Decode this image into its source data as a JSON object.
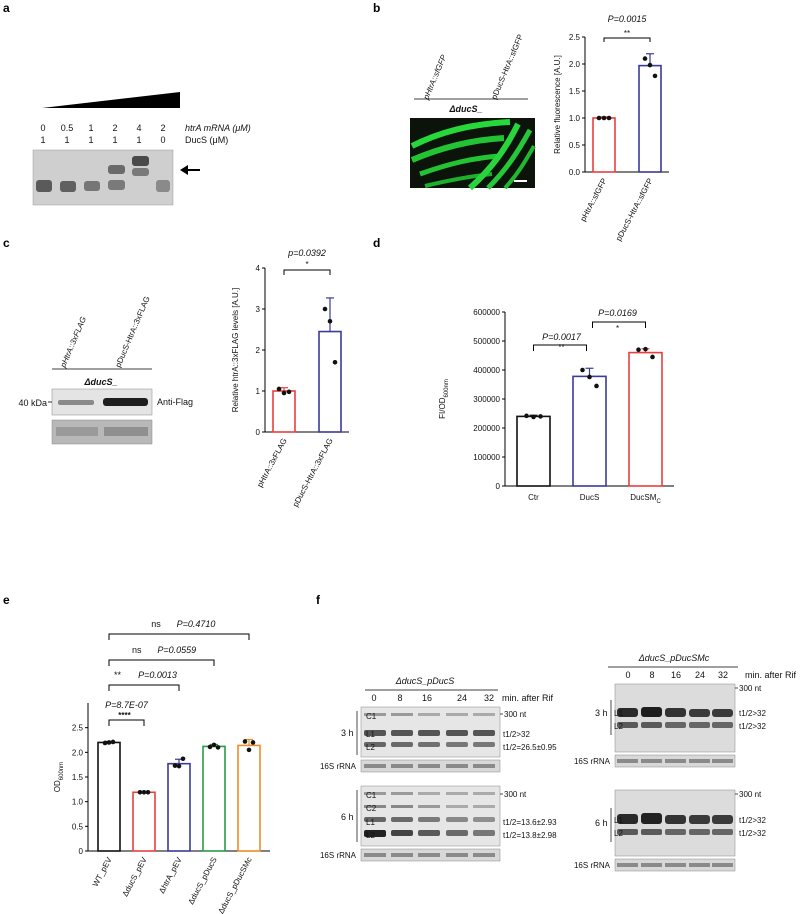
{
  "panels": {
    "a": {
      "letter": "a",
      "row1_label": "htrA mRNA (μM)",
      "row2_label": "DucS (μM)",
      "row1_values": [
        "0",
        "0.5",
        "1",
        "2",
        "4",
        "2"
      ],
      "row2_values": [
        "1",
        "1",
        "1",
        "1",
        "1",
        "0"
      ]
    },
    "b": {
      "letter": "b",
      "lane_labels": [
        "pHtrA::sfGFP",
        "pDucS-HtrA::sfGFP"
      ],
      "strain": "ΔducS_",
      "chart_data": {
        "type": "bar",
        "categories": [
          "pHtrA::sfGFP",
          "pDucS-HtrA::sfGFP"
        ],
        "values": [
          1.0,
          1.97
        ],
        "errors": [
          0.02,
          0.22
        ],
        "points": [
          [
            1.0,
            1.0,
            1.0
          ],
          [
            2.1,
            1.98,
            1.78
          ]
        ],
        "ylabel": "Relative fluorescence [A.U.]",
        "ylim": [
          0,
          2.5
        ],
        "yticks": [
          "0.0",
          "0.5",
          "1.0",
          "1.5",
          "2.0",
          "2.5"
        ],
        "colors": [
          "#e8403f",
          "#3a3a9a"
        ],
        "p_text": "P=0.0015",
        "sig": "**"
      }
    },
    "c": {
      "letter": "c",
      "lane_labels": [
        "pHtrA::3xFLAG",
        "pDucS-HtrA::3xFLAG"
      ],
      "strain": "ΔducS_",
      "marker": "40 kDa",
      "antibody": "Anti-Flag",
      "chart_data": {
        "type": "bar",
        "categories": [
          "pHtrA::3xFLAG",
          "pDucS-HtrA::3xFLAG"
        ],
        "values": [
          1.0,
          2.45
        ],
        "errors": [
          0.08,
          0.82
        ],
        "points": [
          [
            1.05,
            0.95,
            0.98
          ],
          [
            3.0,
            2.7,
            1.7
          ]
        ],
        "ylabel": "Relative htrA::3xFLAG levels [A.U.]",
        "ylim": [
          0,
          4
        ],
        "yticks": [
          "0",
          "1",
          "2",
          "3",
          "4"
        ],
        "colors": [
          "#e8403f",
          "#3a3a9a"
        ],
        "p_text": "p=0.0392",
        "sig": "*"
      }
    },
    "d": {
      "letter": "d",
      "chart_data": {
        "type": "bar",
        "categories": [
          "Ctr",
          "DucS",
          "DucSM"
        ],
        "category_subscripts": [
          "",
          "",
          "C"
        ],
        "values": [
          240000,
          378000,
          460000
        ],
        "errors": [
          4000,
          28000,
          13000
        ],
        "points": [
          [
            242000,
            238000,
            240000
          ],
          [
            400000,
            376000,
            345000
          ],
          [
            470000,
            472000,
            445000
          ]
        ],
        "ylabel": "FI/OD",
        "ylabel_sub": "600nm",
        "ylim": [
          0,
          600000
        ],
        "yticks": [
          "0",
          "100000",
          "200000",
          "300000",
          "400000",
          "500000",
          "600000"
        ],
        "colors": [
          "#111111",
          "#3a3a9a",
          "#e8403f"
        ],
        "comparisons": [
          {
            "p": "P=0.0017",
            "sig": "**"
          },
          {
            "p": "P=0.0169",
            "sig": "*"
          }
        ]
      }
    },
    "e": {
      "letter": "e",
      "chart_data": {
        "type": "bar",
        "categories": [
          "WT_pEV",
          "ΔducS_pEV",
          "ΔhtrA_pEV",
          "ΔducS_pDucS",
          "ΔducS_pDucSMc"
        ],
        "values": [
          2.2,
          1.19,
          1.77,
          2.12,
          2.14
        ],
        "errors": [
          0.02,
          0.01,
          0.09,
          0.04,
          0.12
        ],
        "points": [
          [
            2.19,
            2.2,
            2.21
          ],
          [
            1.19,
            1.19,
            1.19
          ],
          [
            1.73,
            1.72,
            1.87
          ],
          [
            2.11,
            2.15,
            2.1
          ],
          [
            2.22,
            2.05,
            2.2
          ]
        ],
        "ylabel": "OD",
        "ylabel_sub": "600nm",
        "ylim": [
          0,
          3.0
        ],
        "yticks": [
          "0",
          "0.5",
          "1.0",
          "1.5",
          "2.0",
          "2.5"
        ],
        "colors": [
          "#111111",
          "#e8403f",
          "#3a3a9a",
          "#2a9a4a",
          "#f08a2a"
        ],
        "comparisons": [
          {
            "sig": "****",
            "p": "P=8.7E-07"
          },
          {
            "sig": "**",
            "p": "P=0.0013"
          },
          {
            "sig": "ns",
            "p": "P=0.0559"
          },
          {
            "sig": "ns",
            "p": "P=0.4710"
          }
        ]
      }
    },
    "f": {
      "letter": "f",
      "left": {
        "title": "ΔducS_pDucS",
        "timepoints": [
          "0",
          "8",
          "16",
          "24",
          "32"
        ],
        "time_unit": "min. after Rif",
        "size_marker": "300 nt",
        "blot_3h": {
          "time": "3 h",
          "bands": [
            "C1",
            "L1",
            "L2"
          ],
          "half_lives": [
            "t1/2>32",
            "t1/2=26.5±0.95"
          ]
        },
        "blot_6h": {
          "time": "6 h",
          "bands": [
            "C1",
            "C2",
            "L1",
            "L2"
          ],
          "half_lives": [
            "t1/2=13.6±2.93",
            "t1/2=13.8±2.98"
          ]
        },
        "loading": "16S rRNA"
      },
      "right": {
        "title": "ΔducS_pDucSMc",
        "timepoints": [
          "0",
          "8",
          "16",
          "24",
          "32"
        ],
        "time_unit": "min. after Rif",
        "size_marker": "300 nt",
        "blot_3h": {
          "time": "3 h",
          "bands": [
            "L1",
            "L2"
          ],
          "half_lives": [
            "t1/2>32",
            "t1/2>32"
          ]
        },
        "blot_6h": {
          "time": "6 h",
          "bands": [
            "L1",
            "L2"
          ],
          "half_lives": [
            "t1/2>32",
            "t1/2>32"
          ]
        },
        "loading": "16S rRNA"
      }
    }
  }
}
